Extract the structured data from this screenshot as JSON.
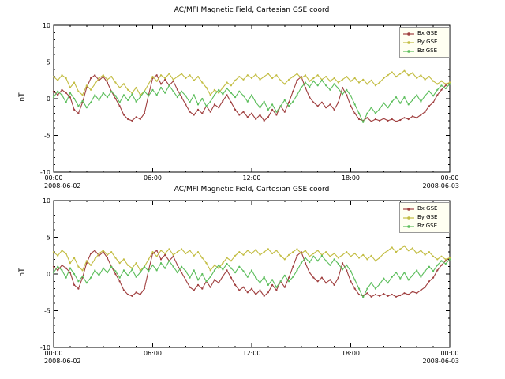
{
  "figure": {
    "background": "#ffffff",
    "axis_color": "#000000",
    "legend_background": "#fffff2",
    "legend_border": "#999999"
  },
  "chart_data": {
    "type": "line",
    "title": "AC/MFI Magnetic Field, Cartesian GSE coord",
    "ylabel": "nT",
    "ylim": [
      -10,
      10
    ],
    "y_ticks": [
      -10,
      -5,
      0,
      5,
      10
    ],
    "x_range_hours": [
      0,
      24
    ],
    "x_step_hours": 0.25,
    "x_ticks": [
      {
        "hours": 0,
        "label": "00:00"
      },
      {
        "hours": 6,
        "label": "06:00"
      },
      {
        "hours": 12,
        "label": "12:00"
      },
      {
        "hours": 18,
        "label": "18:00"
      },
      {
        "hours": 24,
        "label": "00:00"
      }
    ],
    "x_start_date": "2008-06-02",
    "x_end_date": "2008-06-03",
    "grid": false,
    "legend_position": "top-right",
    "panels": [
      {
        "title": "AC/MFI Magnetic Field, Cartesian GSE coord"
      },
      {
        "title": "AC/MFI Magnetic Field, Cartesian GSE coord"
      }
    ],
    "panels_show_same_data": true,
    "series": [
      {
        "name": "Bx GSE",
        "color": "#a04040",
        "values": [
          1.0,
          0.5,
          1.2,
          0.8,
          0.2,
          -1.5,
          -2.0,
          -0.5,
          1.5,
          2.8,
          3.2,
          2.5,
          3.0,
          2.2,
          1.0,
          0.0,
          -1.0,
          -2.2,
          -2.8,
          -3.0,
          -2.5,
          -2.8,
          -2.0,
          0.5,
          2.8,
          3.2,
          2.0,
          2.6,
          1.8,
          2.4,
          1.2,
          0.2,
          -0.8,
          -1.8,
          -2.2,
          -1.5,
          -2.0,
          -1.0,
          -1.8,
          -0.8,
          -1.2,
          -0.3,
          0.5,
          -0.5,
          -1.5,
          -2.2,
          -1.8,
          -2.5,
          -2.0,
          -2.8,
          -2.2,
          -3.0,
          -2.5,
          -1.5,
          -2.2,
          -1.0,
          -1.8,
          -0.5,
          1.0,
          2.5,
          3.0,
          1.5,
          0.2,
          -0.5,
          -1.0,
          -0.5,
          -1.2,
          -0.8,
          -1.5,
          -0.5,
          1.5,
          0.5,
          -1.0,
          -2.0,
          -2.8,
          -3.0,
          -2.6,
          -3.1,
          -2.8,
          -3.0,
          -2.7,
          -3.0,
          -2.8,
          -3.1,
          -2.9,
          -2.6,
          -2.8,
          -2.4,
          -2.6,
          -2.2,
          -1.8,
          -1.0,
          -0.5,
          0.5,
          1.2,
          1.8,
          2.2
        ]
      },
      {
        "name": "By GSE",
        "color": "#c3bd43",
        "values": [
          3.0,
          2.5,
          3.2,
          2.8,
          1.5,
          2.2,
          1.0,
          0.5,
          1.8,
          1.2,
          2.0,
          2.8,
          3.2,
          2.6,
          3.0,
          2.2,
          1.5,
          2.0,
          1.2,
          0.8,
          1.5,
          0.5,
          1.0,
          2.0,
          3.0,
          2.4,
          3.2,
          2.8,
          3.4,
          2.6,
          3.0,
          3.4,
          2.8,
          3.2,
          2.5,
          3.0,
          2.2,
          1.5,
          0.5,
          1.2,
          0.8,
          1.5,
          2.2,
          1.8,
          2.5,
          3.0,
          2.6,
          3.2,
          2.8,
          3.3,
          2.6,
          3.0,
          3.4,
          2.8,
          3.2,
          2.5,
          2.0,
          2.6,
          3.0,
          3.4,
          2.8,
          3.2,
          2.4,
          2.8,
          3.2,
          2.6,
          3.0,
          2.4,
          2.8,
          2.2,
          2.6,
          3.0,
          2.4,
          2.8,
          2.2,
          2.6,
          2.0,
          2.5,
          1.8,
          2.2,
          2.8,
          3.2,
          3.6,
          3.0,
          3.4,
          3.8,
          3.2,
          3.5,
          2.8,
          3.2,
          2.6,
          3.0,
          2.4,
          2.0,
          2.4,
          2.0,
          2.2
        ]
      },
      {
        "name": "Bz GSE",
        "color": "#5cbe5c",
        "values": [
          0.2,
          1.0,
          0.5,
          -0.5,
          0.8,
          0.0,
          -1.0,
          -0.3,
          -1.2,
          -0.5,
          0.5,
          -0.2,
          0.8,
          0.2,
          1.0,
          0.4,
          -0.5,
          0.5,
          -0.2,
          0.6,
          -0.4,
          0.2,
          1.0,
          0.4,
          1.2,
          0.5,
          1.5,
          0.8,
          1.8,
          1.0,
          0.2,
          1.0,
          0.4,
          -0.5,
          0.5,
          -0.8,
          0.0,
          -1.0,
          -0.4,
          0.5,
          1.2,
          0.6,
          1.4,
          0.8,
          0.2,
          1.0,
          0.4,
          -0.4,
          0.5,
          -0.5,
          -1.2,
          -0.4,
          -1.5,
          -0.8,
          -1.8,
          -1.0,
          -0.2,
          -1.0,
          -0.4,
          0.5,
          1.5,
          2.2,
          1.6,
          2.4,
          1.8,
          2.5,
          1.8,
          1.2,
          2.0,
          1.4,
          0.6,
          1.2,
          0.4,
          -0.8,
          -2.0,
          -3.2,
          -2.0,
          -1.2,
          -2.0,
          -1.4,
          -0.6,
          -1.2,
          -0.4,
          0.2,
          -0.6,
          0.2,
          -0.8,
          -0.2,
          0.5,
          -0.4,
          0.4,
          1.0,
          0.4,
          1.2,
          1.8,
          1.4,
          2.0
        ]
      }
    ]
  }
}
